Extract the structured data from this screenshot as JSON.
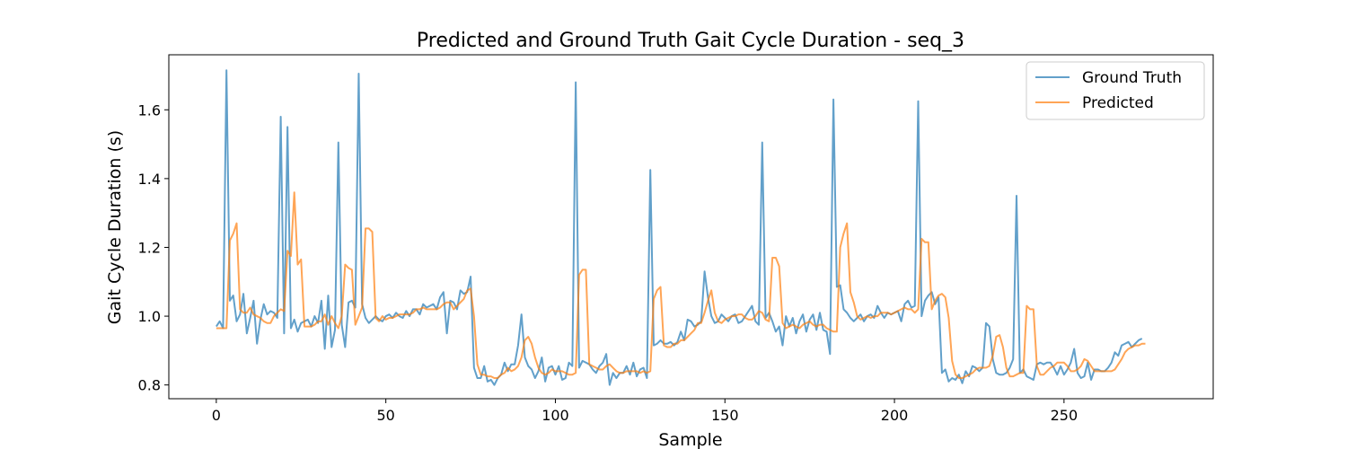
{
  "chart_data": {
    "type": "line",
    "title": "Predicted and Ground Truth Gait Cycle Duration - seq_3",
    "xlabel": "Sample",
    "ylabel": "Gait Cycle Duration (s)",
    "xlim": [
      -14,
      294
    ],
    "ylim": [
      0.76,
      1.76
    ],
    "xticks": [
      0,
      50,
      100,
      150,
      200,
      250
    ],
    "yticks": [
      0.8,
      1.0,
      1.2,
      1.4,
      1.6
    ],
    "ytick_labels": [
      "0.8",
      "1.0",
      "1.2",
      "1.4",
      "1.6"
    ],
    "grid": false,
    "legend_position": "top-right",
    "x_start": 0,
    "series": [
      {
        "name": "Ground Truth",
        "color": "#1f77b4",
        "values": [
          0.97,
          0.985,
          0.965,
          1.715,
          1.045,
          1.06,
          0.985,
          1.005,
          1.065,
          0.95,
          0.995,
          1.045,
          0.92,
          0.99,
          1.035,
          1.005,
          1.015,
          1.01,
          0.995,
          1.58,
          0.95,
          1.55,
          0.965,
          0.99,
          0.955,
          0.98,
          0.985,
          0.99,
          0.97,
          1.0,
          0.98,
          1.045,
          0.905,
          1.06,
          0.91,
          0.96,
          1.505,
          0.975,
          0.91,
          1.04,
          1.045,
          1.025,
          1.705,
          1.035,
          0.995,
          0.98,
          0.99,
          1.0,
          0.99,
          0.985,
          1.0,
          1.005,
          0.995,
          1.01,
          1.0,
          0.995,
          1.015,
          1.0,
          1.02,
          1.02,
          1.005,
          1.035,
          1.025,
          1.03,
          1.035,
          1.02,
          1.055,
          1.07,
          0.95,
          1.045,
          1.04,
          1.02,
          1.075,
          1.065,
          1.07,
          1.115,
          0.85,
          0.82,
          0.82,
          0.855,
          0.81,
          0.815,
          0.8,
          0.82,
          0.83,
          0.865,
          0.84,
          0.86,
          0.86,
          0.915,
          1.005,
          0.88,
          0.855,
          0.845,
          0.82,
          0.84,
          0.88,
          0.81,
          0.85,
          0.855,
          0.83,
          0.855,
          0.815,
          0.82,
          0.865,
          0.855,
          1.68,
          0.85,
          0.87,
          0.865,
          0.86,
          0.845,
          0.835,
          0.855,
          0.865,
          0.89,
          0.8,
          0.835,
          0.82,
          0.835,
          0.835,
          0.855,
          0.83,
          0.865,
          0.825,
          0.845,
          0.85,
          0.82,
          1.425,
          0.915,
          0.92,
          0.93,
          0.92,
          0.92,
          0.925,
          0.915,
          0.925,
          0.955,
          0.93,
          0.99,
          0.985,
          0.97,
          0.975,
          0.985,
          1.13,
          1.055,
          1.0,
          0.98,
          0.985,
          1.005,
          0.995,
          0.985,
          1.0,
          1.005,
          0.98,
          0.985,
          1.0,
          1.015,
          1.03,
          0.985,
          0.975,
          1.505,
          0.995,
          1.01,
          0.985,
          0.955,
          0.97,
          0.915,
          1.0,
          0.97,
          0.995,
          0.95,
          0.985,
          1.005,
          0.955,
          0.99,
          1.005,
          0.96,
          1.01,
          0.96,
          0.955,
          0.89,
          1.63,
          1.085,
          1.09,
          1.02,
          1.01,
          0.995,
          0.985,
          0.995,
          1.005,
          0.985,
          1.0,
          1.005,
          0.995,
          1.03,
          1.01,
          0.995,
          1.01,
          1.005,
          1.01,
          1.015,
          0.985,
          1.035,
          1.045,
          1.025,
          1.03,
          1.625,
          1.0,
          1.045,
          1.06,
          1.07,
          1.035,
          1.055,
          0.835,
          0.845,
          0.81,
          0.82,
          0.815,
          0.83,
          0.805,
          0.84,
          0.825,
          0.855,
          0.85,
          0.84,
          0.85,
          0.98,
          0.97,
          0.875,
          0.835,
          0.83,
          0.83,
          0.835,
          0.85,
          0.875,
          1.35,
          0.835,
          0.845,
          0.825,
          0.82,
          0.815,
          0.86,
          0.865,
          0.86,
          0.865,
          0.865,
          0.85,
          0.83,
          0.855,
          0.83,
          0.845,
          0.865,
          0.905,
          0.835,
          0.82,
          0.825,
          0.865,
          0.815,
          0.845,
          0.845,
          0.84,
          0.84,
          0.85,
          0.865,
          0.895,
          0.885,
          0.915,
          0.92,
          0.925,
          0.91,
          0.92,
          0.93,
          0.935
        ]
      },
      {
        "name": "Predicted",
        "color": "#ff7f0e",
        "values": [
          0.965,
          0.965,
          0.965,
          0.965,
          1.22,
          1.24,
          1.27,
          1.02,
          1.01,
          1.01,
          1.025,
          1.005,
          1.0,
          0.995,
          0.985,
          0.98,
          0.98,
          1.0,
          1.01,
          1.02,
          1.015,
          1.19,
          1.175,
          1.36,
          1.15,
          1.165,
          0.97,
          0.97,
          0.97,
          0.975,
          0.985,
          0.985,
          1.005,
          0.975,
          1.0,
          0.98,
          0.965,
          1.0,
          1.15,
          1.14,
          1.135,
          0.975,
          1.0,
          1.025,
          1.255,
          1.255,
          1.245,
          0.995,
          0.985,
          1.0,
          0.99,
          0.995,
          0.995,
          1.0,
          1.005,
          1.005,
          1.005,
          1.005,
          1.01,
          1.02,
          1.02,
          1.025,
          1.02,
          1.02,
          1.02,
          1.02,
          1.025,
          1.035,
          1.04,
          1.04,
          1.02,
          1.03,
          1.04,
          1.05,
          1.075,
          1.08,
          1.0,
          0.86,
          0.83,
          0.83,
          0.825,
          0.825,
          0.82,
          0.82,
          0.83,
          0.835,
          0.85,
          0.84,
          0.845,
          0.855,
          0.88,
          0.93,
          0.94,
          0.92,
          0.88,
          0.85,
          0.835,
          0.83,
          0.835,
          0.845,
          0.84,
          0.84,
          0.84,
          0.835,
          0.83,
          0.83,
          0.835,
          1.12,
          1.135,
          1.135,
          0.86,
          0.855,
          0.85,
          0.845,
          0.845,
          0.855,
          0.86,
          0.85,
          0.84,
          0.835,
          0.835,
          0.84,
          0.84,
          0.84,
          0.84,
          0.835,
          0.84,
          0.835,
          0.84,
          1.05,
          1.075,
          1.085,
          0.915,
          0.91,
          0.91,
          0.92,
          0.92,
          0.93,
          0.93,
          0.94,
          0.95,
          0.96,
          0.98,
          0.98,
          1.01,
          1.045,
          1.075,
          1.01,
          0.985,
          0.98,
          0.99,
          0.995,
          1.0,
          1.0,
          1.005,
          1.005,
          0.995,
          0.99,
          0.99,
          1.0,
          1.015,
          1.01,
          0.99,
          0.985,
          1.17,
          1.17,
          1.145,
          0.98,
          0.965,
          0.97,
          0.975,
          0.97,
          0.965,
          0.975,
          0.98,
          0.985,
          0.975,
          0.97,
          0.975,
          0.975,
          0.965,
          0.96,
          0.955,
          0.955,
          1.2,
          1.24,
          1.27,
          1.07,
          1.04,
          1.0,
          0.99,
          0.995,
          1.0,
          0.995,
          1.0,
          1.0,
          1.01,
          1.01,
          1.01,
          1.005,
          1.01,
          1.015,
          1.02,
          1.025,
          1.02,
          1.02,
          1.01,
          1.02,
          1.225,
          1.215,
          1.215,
          1.02,
          1.045,
          1.06,
          1.065,
          1.055,
          0.995,
          0.87,
          0.83,
          0.82,
          0.82,
          0.825,
          0.83,
          0.835,
          0.845,
          0.85,
          0.85,
          0.85,
          0.855,
          0.885,
          0.94,
          0.945,
          0.91,
          0.85,
          0.825,
          0.825,
          0.83,
          0.835,
          0.835,
          1.03,
          1.02,
          1.02,
          0.855,
          0.83,
          0.83,
          0.84,
          0.85,
          0.855,
          0.865,
          0.865,
          0.865,
          0.855,
          0.84,
          0.84,
          0.845,
          0.855,
          0.875,
          0.87,
          0.855,
          0.84,
          0.84,
          0.84,
          0.84,
          0.84,
          0.84,
          0.845,
          0.86,
          0.875,
          0.895,
          0.905,
          0.91,
          0.915,
          0.915,
          0.92,
          0.92
        ]
      }
    ]
  }
}
